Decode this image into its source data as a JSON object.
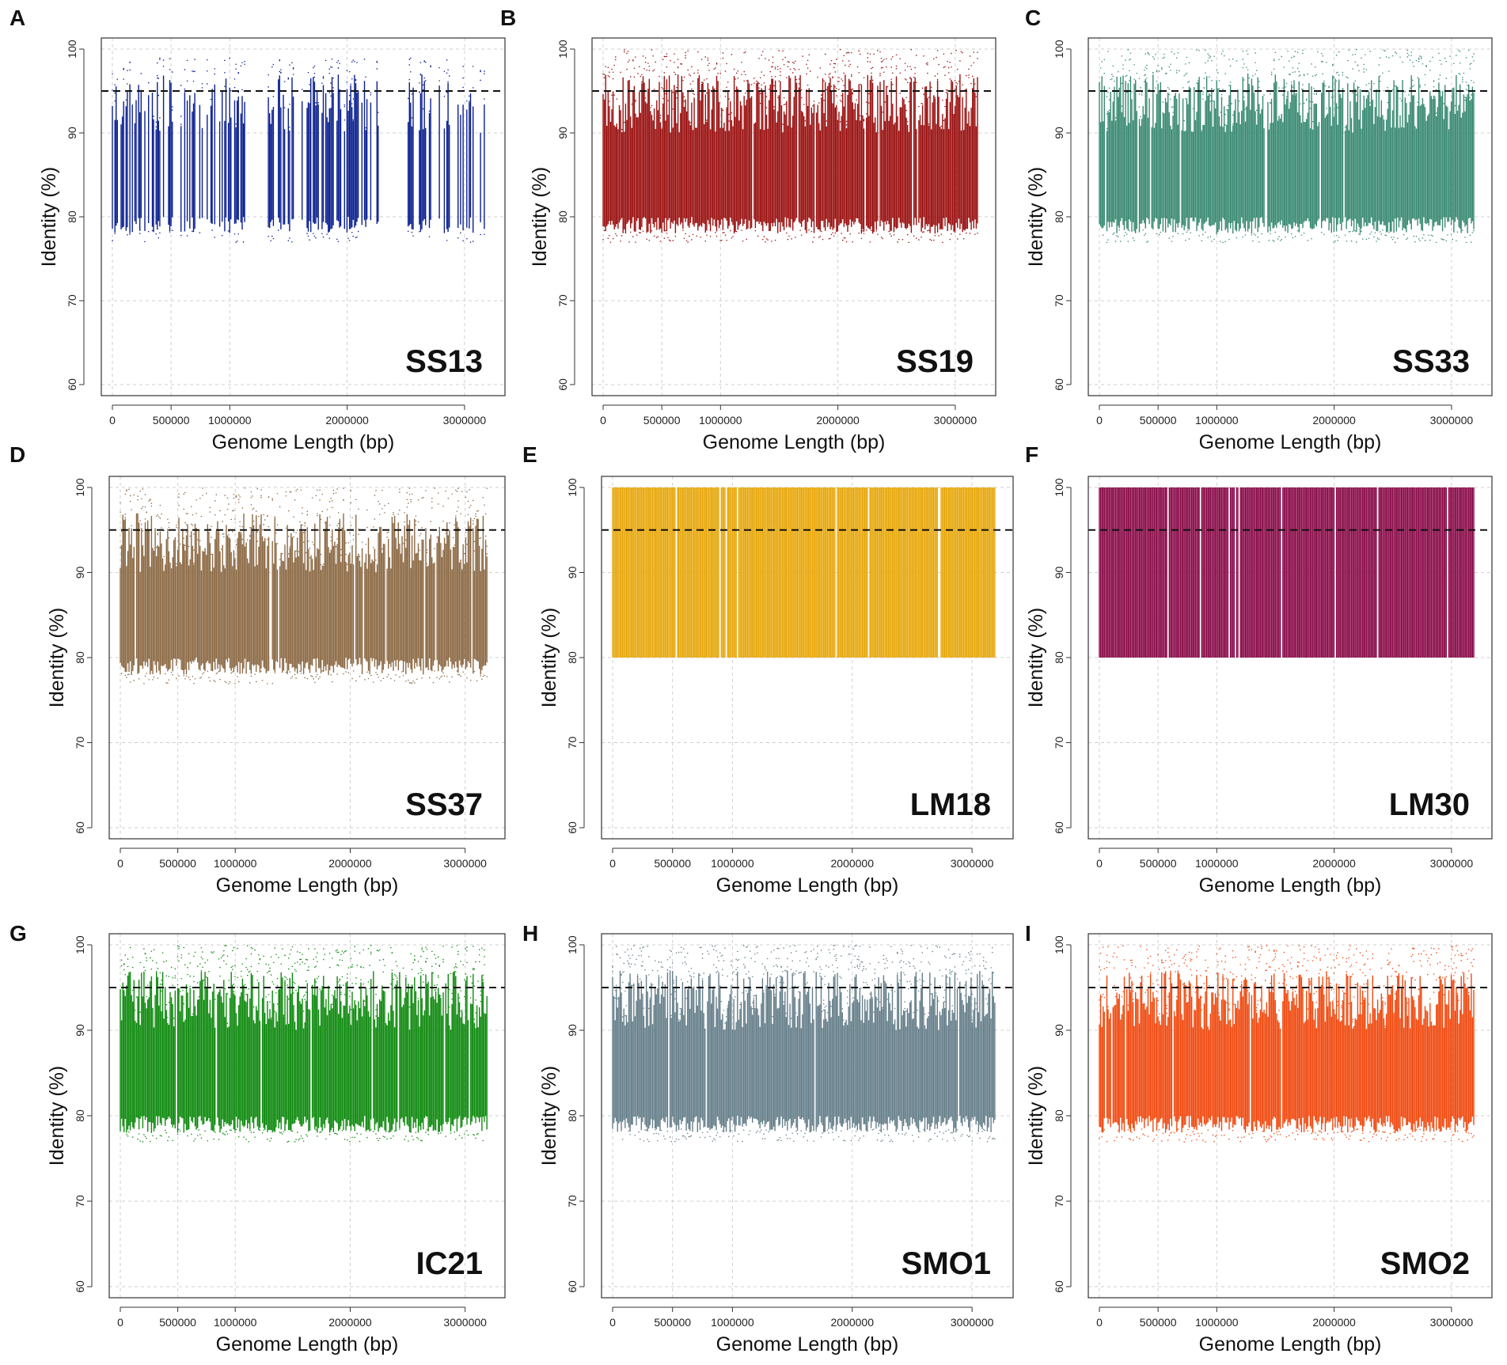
{
  "figure": {
    "description_none": ""
  },
  "chart_data": [
    {
      "panel": "A",
      "sample": "SS13",
      "type": "scatter",
      "color": "#0a1f8f",
      "xlabel": "Genome Length (bp)",
      "ylabel": "Identity  (%)",
      "xticks": [
        0,
        500000,
        1000000,
        2000000,
        3000000
      ],
      "yticks": [
        60,
        70,
        80,
        90,
        100
      ],
      "xlim": [
        0,
        3250000
      ],
      "ylim": [
        60,
        100
      ],
      "threshold": 95,
      "y_range": [
        77,
        99
      ],
      "density": 0.55,
      "gaps": [
        [
          1130000,
          1320000
        ],
        [
          2280000,
          2510000
        ],
        [
          2720000,
          2760000
        ],
        [
          2880000,
          2940000
        ],
        [
          3080000,
          3120000
        ]
      ]
    },
    {
      "panel": "B",
      "sample": "SS19",
      "type": "scatter",
      "color": "#9b1111",
      "xlabel": "Genome Length (bp)",
      "ylabel": "Identity  (%)",
      "xticks": [
        0,
        500000,
        1000000,
        2000000,
        3000000
      ],
      "yticks": [
        60,
        70,
        80,
        90,
        100
      ],
      "xlim": [
        0,
        3250000
      ],
      "ylim": [
        60,
        100
      ],
      "threshold": 95,
      "y_range": [
        77,
        100
      ],
      "density": 1.0,
      "gaps": []
    },
    {
      "panel": "C",
      "sample": "SS33",
      "type": "scatter",
      "color": "#3a8a73",
      "xlabel": "Genome Length (bp)",
      "ylabel": "Identity  (%)",
      "xticks": [
        0,
        500000,
        1000000,
        2000000,
        3000000
      ],
      "yticks": [
        60,
        70,
        80,
        90,
        100
      ],
      "xlim": [
        0,
        3250000
      ],
      "ylim": [
        60,
        100
      ],
      "threshold": 95,
      "y_range": [
        77,
        100
      ],
      "density": 1.0,
      "gaps": []
    },
    {
      "panel": "D",
      "sample": "SS37",
      "type": "scatter",
      "color": "#8c6a45",
      "xlabel": "Genome Length (bp)",
      "ylabel": "Identity  (%)",
      "xticks": [
        0,
        500000,
        1000000,
        2000000,
        3000000
      ],
      "yticks": [
        60,
        70,
        80,
        90,
        100
      ],
      "xlim": [
        0,
        3250000
      ],
      "ylim": [
        60,
        100
      ],
      "threshold": 95,
      "y_range": [
        77,
        100
      ],
      "density": 1.0,
      "gaps": []
    },
    {
      "panel": "E",
      "sample": "LM18",
      "type": "scatter",
      "color": "#e8a80c",
      "xlabel": "Genome Length (bp)",
      "ylabel": "Identity  (%)",
      "xticks": [
        0,
        500000,
        1000000,
        2000000,
        3000000
      ],
      "yticks": [
        60,
        70,
        80,
        90,
        100
      ],
      "xlim": [
        0,
        3250000
      ],
      "ylim": [
        60,
        100
      ],
      "threshold": 95,
      "y_range": [
        80,
        100
      ],
      "density": 1.0,
      "gaps": [],
      "solid": true
    },
    {
      "panel": "F",
      "sample": "LM30",
      "type": "scatter",
      "color": "#8a0c4a",
      "xlabel": "Genome Length (bp)",
      "ylabel": "Identity  (%)",
      "xticks": [
        0,
        500000,
        1000000,
        2000000,
        3000000
      ],
      "yticks": [
        60,
        70,
        80,
        90,
        100
      ],
      "xlim": [
        0,
        3250000
      ],
      "ylim": [
        60,
        100
      ],
      "threshold": 95,
      "y_range": [
        80,
        100
      ],
      "density": 1.0,
      "gaps": [],
      "solid": true
    },
    {
      "panel": "G",
      "sample": "IC21",
      "type": "scatter",
      "color": "#0f8a0f",
      "xlabel": "Genome Length (bp)",
      "ylabel": "Identity  (%)",
      "xticks": [
        0,
        500000,
        1000000,
        2000000,
        3000000
      ],
      "yticks": [
        60,
        70,
        80,
        90,
        100
      ],
      "xlim": [
        0,
        3250000
      ],
      "ylim": [
        60,
        100
      ],
      "threshold": 95,
      "y_range": [
        77,
        100
      ],
      "density": 1.0,
      "gaps": []
    },
    {
      "panel": "H",
      "sample": "SMO1",
      "type": "scatter",
      "color": "#667f8a",
      "xlabel": "Genome Length (bp)",
      "ylabel": "Identity  (%)",
      "xticks": [
        0,
        500000,
        1000000,
        2000000,
        3000000
      ],
      "yticks": [
        60,
        70,
        80,
        90,
        100
      ],
      "xlim": [
        0,
        3250000
      ],
      "ylim": [
        60,
        100
      ],
      "threshold": 95,
      "y_range": [
        77,
        100
      ],
      "density": 1.0,
      "gaps": []
    },
    {
      "panel": "I",
      "sample": "SMO2",
      "type": "scatter",
      "color": "#f04a10",
      "xlabel": "Genome Length (bp)",
      "ylabel": "Identity  (%)",
      "xticks": [
        0,
        500000,
        1000000,
        2000000,
        3000000
      ],
      "yticks": [
        60,
        70,
        80,
        90,
        100
      ],
      "xlim": [
        0,
        3250000
      ],
      "ylim": [
        60,
        100
      ],
      "threshold": 95,
      "y_range": [
        77,
        100
      ],
      "density": 1.0,
      "gaps": []
    }
  ]
}
